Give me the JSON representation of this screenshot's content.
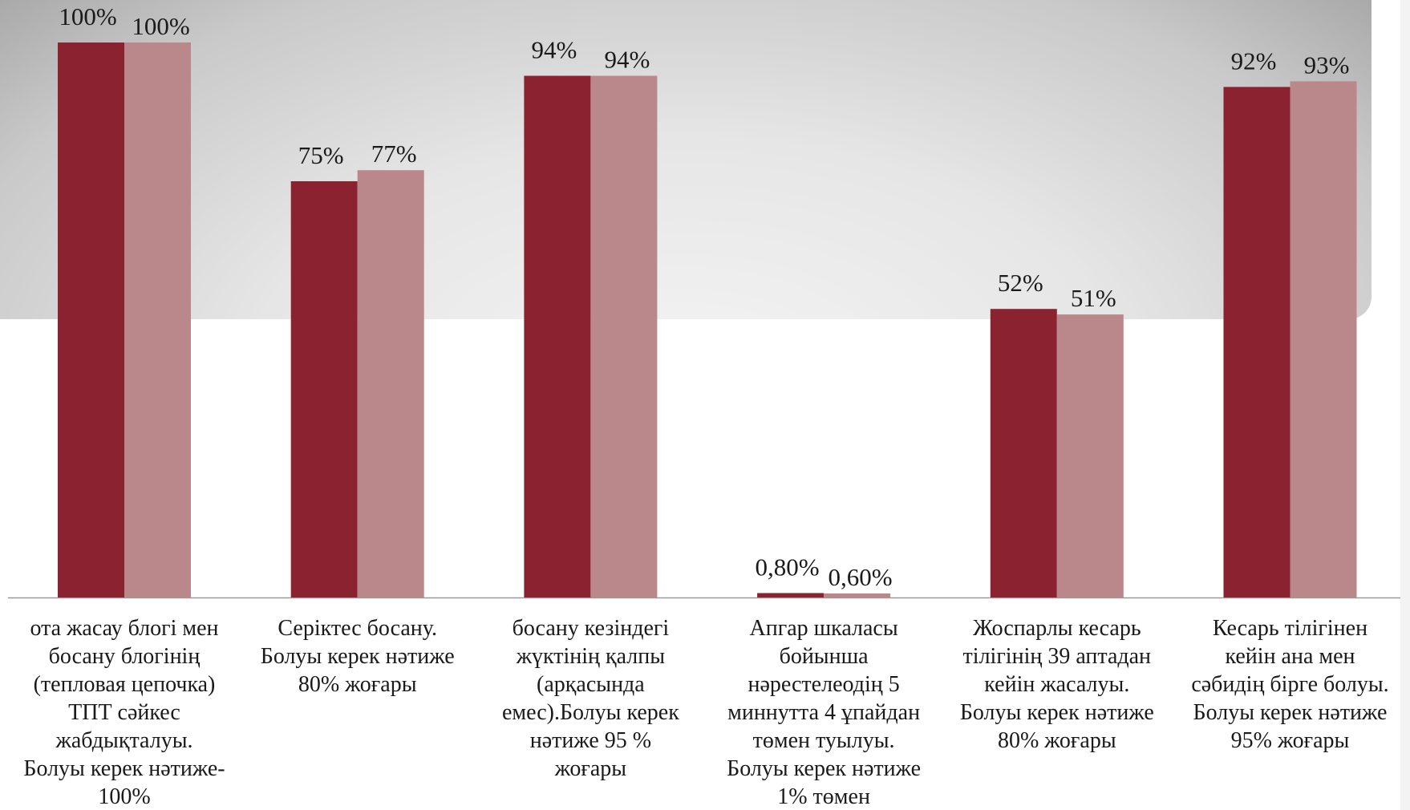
{
  "chart_data": {
    "type": "bar",
    "ylim": [
      0,
      100
    ],
    "grid": false,
    "legend": "none",
    "categories": [
      "ота жасау блогі мен\nбосану блогінің\n(тепловая цепочка)\nТПТ сәйкес\nжабдықталуы.\nБолуы керек нәтиже-\n100%",
      "Серіктес босану.\nБолуы керек нәтиже\n80% жоғары",
      "босану кезіндегі\nжүктінің қалпы\n(арқасында\nемес).Болуы керек\nнәтиже  95 %\nжоғары",
      "Апгар шкаласы\nбойынша\nнәрестелеодің 5\nминнутта 4 ұпайдан\nтөмен туылуы.\nБолуы керек нәтиже\n1% төмен",
      "Жоспарлы кесарь\nтілігінің  39 аптадан\nкейін жасалуы.\nБолуы керек нәтиже\n80% жоғары",
      "Кесарь тілігінен\nкейін ана мен\nсәбидің бірге болуы.\nБолуы керек нәтиже\n95% жоғары"
    ],
    "series": [
      {
        "values": [
          100,
          75,
          94,
          0.8,
          52,
          92
        ],
        "labels": [
          "100%",
          "75%",
          "94%",
          "0,80%",
          "52%",
          "92%"
        ],
        "color": "#8b2230"
      },
      {
        "values": [
          100,
          77,
          94,
          0.6,
          51,
          93
        ],
        "labels": [
          "100%",
          "77%",
          "94%",
          "0,60%",
          "51%",
          "93%"
        ],
        "color": "#ba888a"
      }
    ]
  },
  "colors": {
    "axis": "#999999",
    "label_text": "#1a1a1a",
    "backdrop_light": "#f4f4f4",
    "backdrop_dark": "#a9a9a9"
  }
}
